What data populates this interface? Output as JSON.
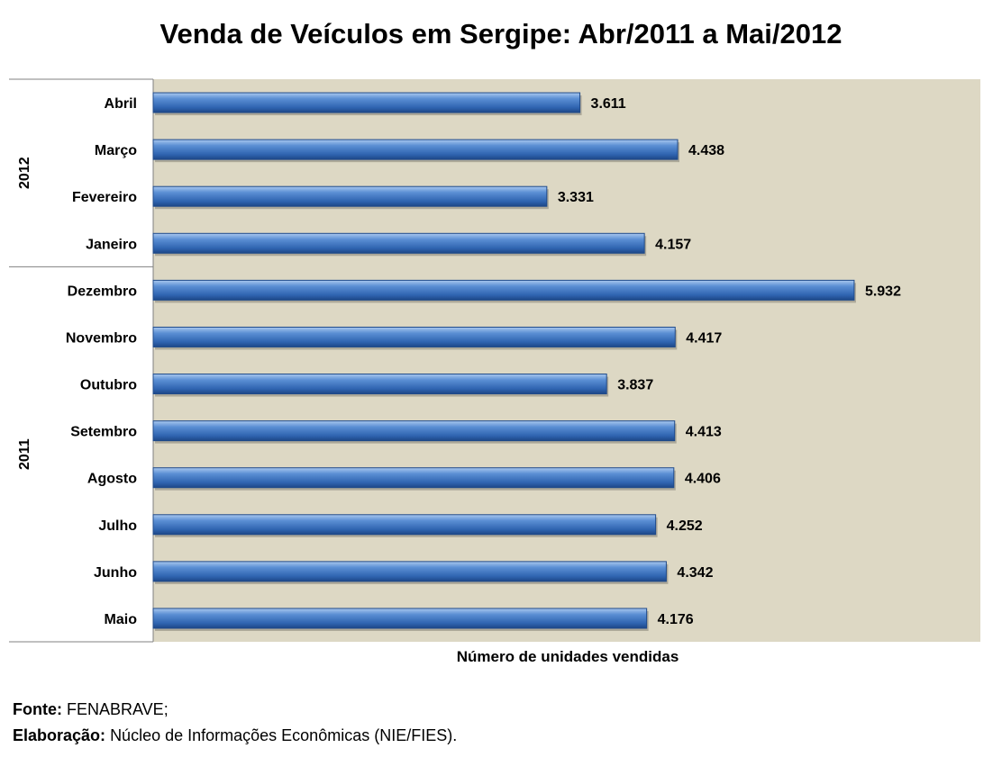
{
  "chart_data": {
    "type": "bar",
    "orientation": "horizontal",
    "title": "Venda de Veículos em Sergipe: Abr/2011 a Mai/2012",
    "xlabel": "Número de unidades vendidas",
    "ylabel": "",
    "xlim": [
      0,
      7000
    ],
    "grid": false,
    "legend": "none",
    "background_color": "#ddd8c4",
    "bar_color": "#4a7ebb",
    "groups": [
      {
        "label": "2012",
        "categories": [
          "Abril",
          "Março",
          "Fevereiro",
          "Janeiro"
        ]
      },
      {
        "label": "2011",
        "categories": [
          "Dezembro",
          "Novembro",
          "Outubro",
          "Setembro",
          "Agosto",
          "Julho",
          "Junho",
          "Maio"
        ]
      }
    ],
    "categories": [
      "Abril",
      "Março",
      "Fevereiro",
      "Janeiro",
      "Dezembro",
      "Novembro",
      "Outubro",
      "Setembro",
      "Agosto",
      "Julho",
      "Junho",
      "Maio"
    ],
    "values": [
      3611,
      4438,
      3331,
      4157,
      5932,
      4417,
      3837,
      4413,
      4406,
      4252,
      4342,
      4176
    ],
    "value_labels": [
      "3.611",
      "4.438",
      "3.331",
      "4.157",
      "5.932",
      "4.417",
      "3.837",
      "4.413",
      "4.406",
      "4.252",
      "4.342",
      "4.176"
    ]
  },
  "footer": {
    "source_label": "Fonte:",
    "source_value": "FENABRAVE;",
    "elaboration_label": "Elaboração:",
    "elaboration_value": "Núcleo de Informações Econômicas (NIE/FIES)."
  }
}
